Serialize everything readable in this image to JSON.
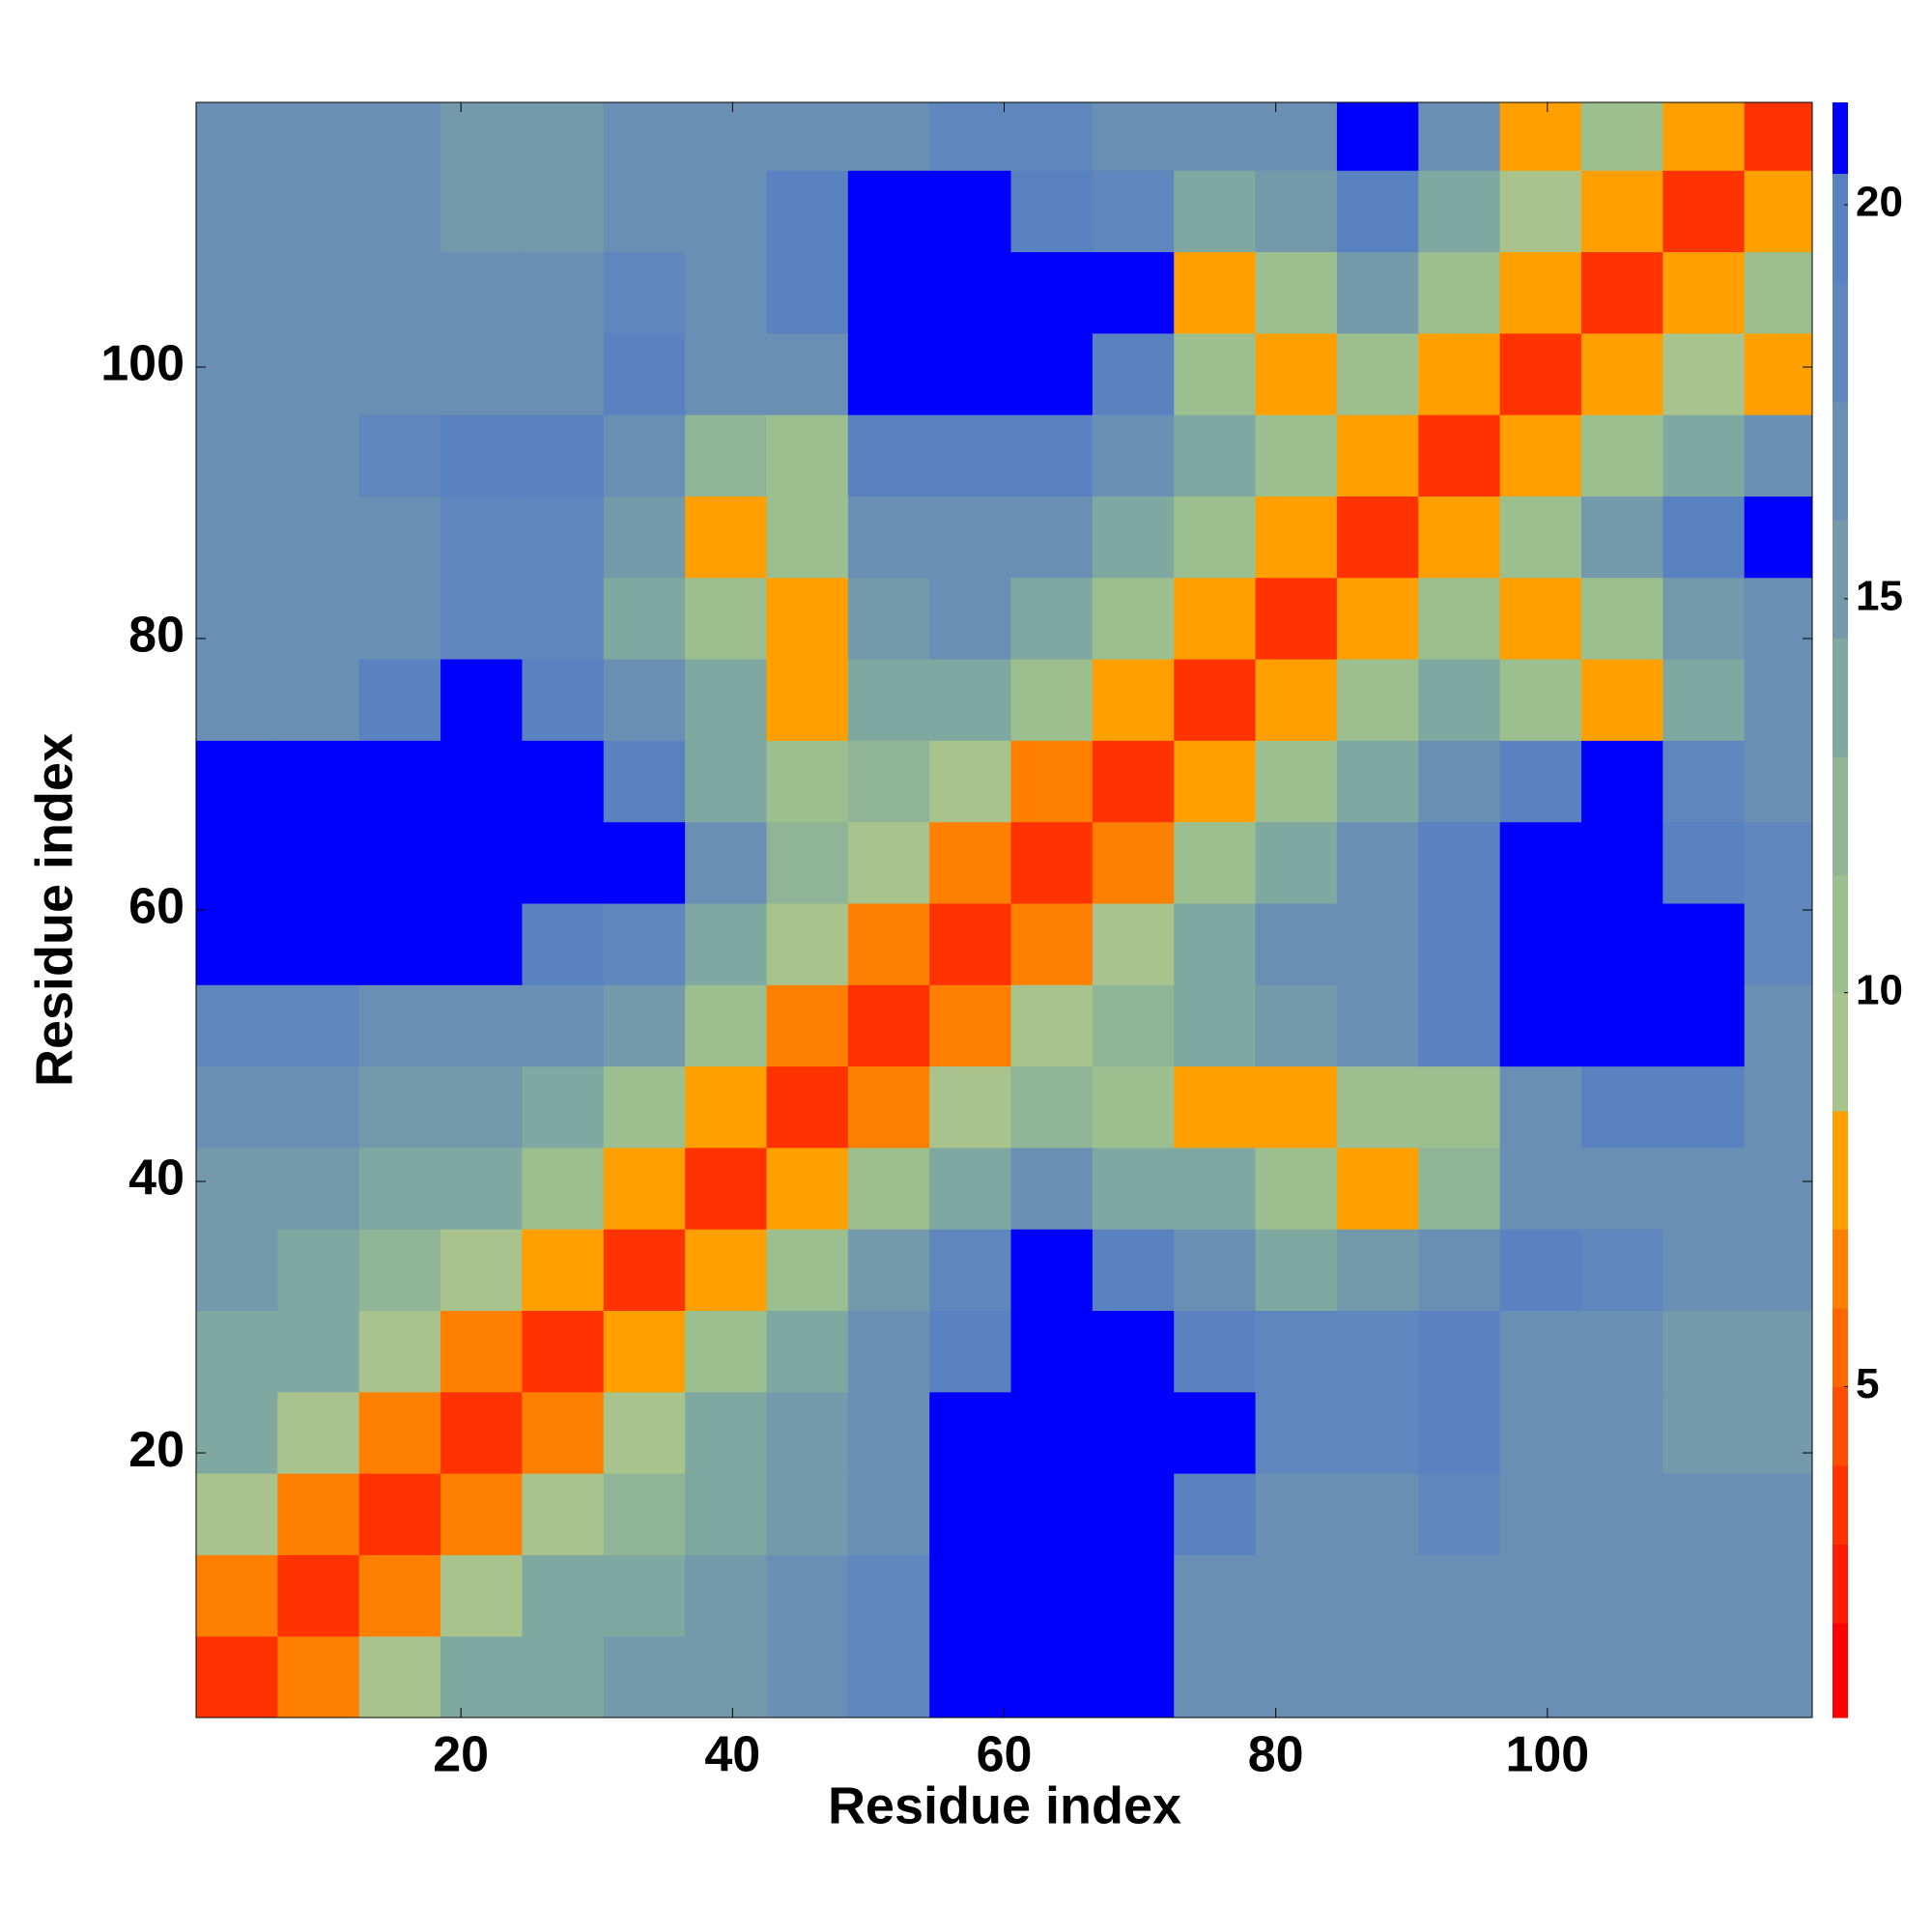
{
  "chart_data": {
    "type": "heatmap",
    "xlabel": "Residue index",
    "ylabel": "Residue index",
    "xbins": [
      0.5,
      6.5,
      12.5,
      18.5,
      24.5,
      30.5,
      36.5,
      42.5,
      48.5,
      54.5,
      60.5,
      66.5,
      72.5,
      78.5,
      84.5,
      90.5,
      96.5,
      102.5,
      108.5,
      114.5,
      119.5
    ],
    "ybins": [
      0.5,
      6.5,
      12.5,
      18.5,
      24.5,
      30.5,
      36.5,
      42.5,
      48.5,
      54.5,
      60.5,
      66.5,
      72.5,
      78.5,
      84.5,
      90.5,
      96.5,
      102.5,
      108.5,
      114.5,
      119.5
    ],
    "xlim": [
      0.5,
      119.5
    ],
    "ylim": [
      0.5,
      119.5
    ],
    "xticks": [
      20,
      40,
      60,
      80,
      100
    ],
    "yticks": [
      20,
      40,
      60,
      80,
      100
    ],
    "z": [
      [
        3,
        6,
        9,
        13,
        14,
        15,
        15,
        16,
        18,
        21,
        21,
        21,
        17,
        16,
        16,
        17,
        16,
        17,
        17,
        16
      ],
      [
        6,
        3,
        6,
        9,
        13,
        14,
        15,
        16,
        18,
        21,
        21,
        21,
        17,
        16,
        16,
        17,
        16,
        17,
        17,
        17
      ],
      [
        9,
        6,
        3,
        6,
        9,
        12,
        14,
        15,
        17,
        21,
        21,
        21,
        20,
        17,
        17,
        18,
        16,
        17,
        16,
        16
      ],
      [
        13,
        9,
        6,
        3,
        6,
        9,
        13,
        15,
        16,
        21,
        21,
        21,
        21,
        18,
        18,
        19,
        17,
        16,
        15,
        15
      ],
      [
        14,
        13,
        9,
        6,
        3,
        7,
        11,
        14,
        16,
        20,
        21,
        21,
        20,
        18,
        18,
        19,
        17,
        16,
        15,
        15
      ],
      [
        15,
        14,
        12,
        9,
        7,
        3,
        7,
        11,
        15,
        18,
        21,
        20,
        16,
        14,
        15,
        17,
        19,
        18,
        17,
        17
      ],
      [
        15,
        15,
        14,
        13,
        11,
        7,
        3,
        7,
        11,
        14,
        16,
        14,
        13,
        10,
        7,
        12,
        16,
        17,
        17,
        16
      ],
      [
        16,
        16,
        15,
        15,
        14,
        11,
        7,
        3,
        6,
        9,
        12,
        11,
        8,
        7,
        10,
        11,
        16,
        19,
        19,
        17
      ],
      [
        18,
        18,
        17,
        16,
        16,
        15,
        11,
        6,
        3,
        6,
        9,
        12,
        13,
        15,
        17,
        19,
        21,
        21,
        21,
        17
      ],
      [
        21,
        21,
        21,
        21,
        20,
        18,
        14,
        9,
        6,
        3,
        6,
        9,
        13,
        16,
        17,
        20,
        21,
        21,
        21,
        18
      ],
      [
        21,
        21,
        21,
        21,
        21,
        21,
        16,
        12,
        9,
        6,
        3,
        6,
        10,
        14,
        16,
        19,
        21,
        21,
        20,
        18
      ],
      [
        21,
        21,
        21,
        21,
        21,
        20,
        14,
        11,
        12,
        9,
        6,
        3,
        7,
        11,
        14,
        17,
        20,
        21,
        18,
        17
      ],
      [
        17,
        17,
        20,
        21,
        20,
        16,
        13,
        8,
        13,
        13,
        10,
        7,
        3,
        7,
        11,
        14,
        11,
        7,
        14,
        17
      ],
      [
        16,
        16,
        17,
        18,
        18,
        14,
        10,
        7,
        15,
        16,
        14,
        11,
        7,
        3,
        7,
        11,
        7,
        11,
        15,
        17
      ],
      [
        16,
        16,
        17,
        18,
        18,
        15,
        7,
        10,
        17,
        17,
        16,
        14,
        11,
        7,
        3,
        7,
        11,
        15,
        20,
        21
      ],
      [
        17,
        17,
        18,
        19,
        19,
        17,
        12,
        11,
        19,
        20,
        19,
        17,
        14,
        11,
        7,
        3,
        7,
        11,
        14,
        16
      ],
      [
        16,
        16,
        16,
        17,
        17,
        19,
        16,
        16,
        21,
        21,
        21,
        20,
        11,
        7,
        11,
        7,
        3,
        7,
        9,
        7
      ],
      [
        17,
        17,
        17,
        16,
        16,
        18,
        17,
        19,
        21,
        21,
        21,
        21,
        7,
        11,
        15,
        11,
        7,
        3,
        7,
        10
      ],
      [
        17,
        17,
        16,
        15,
        15,
        17,
        17,
        19,
        21,
        21,
        20,
        18,
        14,
        15,
        20,
        14,
        9,
        7,
        3,
        7
      ],
      [
        16,
        17,
        16,
        15,
        15,
        17,
        16,
        17,
        17,
        18,
        18,
        17,
        17,
        17,
        21,
        16,
        7,
        10,
        7,
        3
      ]
    ],
    "colorbar": {
      "lim": [
        0.8,
        21.3
      ],
      "ticks": [
        5,
        10,
        15,
        20
      ],
      "levels": [
        0.8,
        2,
        3,
        4,
        5,
        6,
        7,
        8.5,
        10,
        11.5,
        13,
        14.5,
        16,
        17.5,
        19,
        20.4,
        21.3
      ],
      "colors": [
        "#ff0000",
        "#ff1a00",
        "#ff3300",
        "#ff4d00",
        "#ff6600",
        "#ff8000",
        "#ffa000",
        "#a8c48c",
        "#9cbf90",
        "#8fb496",
        "#7fa8a0",
        "#7399aa",
        "#6a8fb5",
        "#6087bd",
        "#5a82c0",
        "#0000ff"
      ]
    }
  }
}
